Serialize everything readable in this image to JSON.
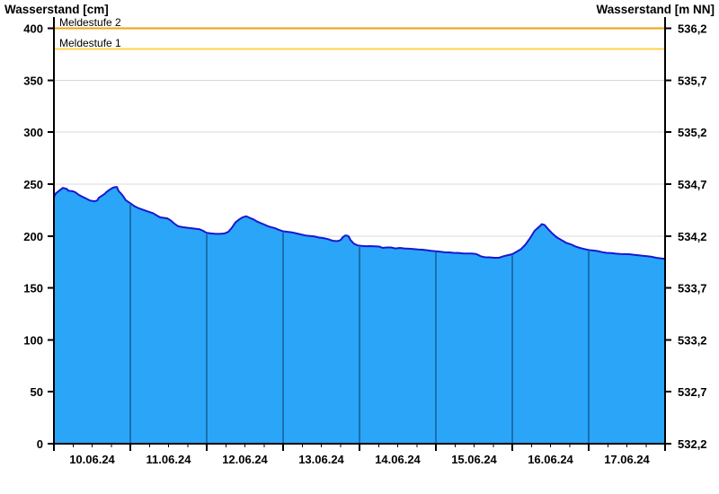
{
  "chart": {
    "title_left": "Wasserstand [cm]",
    "title_right": "Wasserstand [m NN]",
    "colors": {
      "fill": "#2aa5f8",
      "line": "#1818d2",
      "day_separator": "#1b6fb0",
      "grid": "#d8d8d8",
      "axis": "#000000",
      "meldestufe2": "#f2a20d",
      "meldestufe1": "#ffd34f"
    }
  },
  "chart_data": {
    "type": "area",
    "title": "Wasserstand",
    "grid": true,
    "x_unit": "hours since 10.06.24 00:00",
    "x_range": [
      0,
      192
    ],
    "x_day_labels": [
      "10.06.24",
      "11.06.24",
      "12.06.24",
      "13.06.24",
      "14.06.24",
      "15.06.24",
      "16.06.24",
      "17.06.24"
    ],
    "x_day_boundaries_hours": [
      24,
      48,
      72,
      96,
      120,
      144,
      168
    ],
    "x_minor_tick_hours": 6,
    "y_left": {
      "label": "Wasserstand [cm]",
      "range": [
        0,
        400
      ],
      "tick_step": 50,
      "ticks": [
        "0",
        "50",
        "100",
        "150",
        "200",
        "250",
        "300",
        "350",
        "400"
      ]
    },
    "y_right": {
      "label": "Wasserstand [m NN]",
      "range": [
        532.2,
        536.2
      ],
      "ticks": [
        "532,2",
        "532,7",
        "533,2",
        "533,7",
        "534,2",
        "534,7",
        "535,2",
        "535,7",
        "536,2"
      ]
    },
    "alert_lines": [
      {
        "name": "Meldestufe 2",
        "value_cm": 400,
        "color": "#f2a20d"
      },
      {
        "name": "Meldestufe 1",
        "value_cm": 380,
        "color": "#ffd34f"
      }
    ],
    "series": [
      {
        "name": "Wasserstand",
        "unit": "cm",
        "points": [
          [
            0,
            237.5
          ],
          [
            0.6,
            241
          ],
          [
            1.7,
            243.7
          ],
          [
            2.8,
            246.3
          ],
          [
            4,
            245.4
          ],
          [
            4.5,
            243.7
          ],
          [
            6,
            243
          ],
          [
            6.8,
            242
          ],
          [
            7.9,
            239.4
          ],
          [
            9,
            237.7
          ],
          [
            10.2,
            236
          ],
          [
            11.3,
            234.2
          ],
          [
            12.7,
            233.4
          ],
          [
            13.6,
            234.2
          ],
          [
            14.1,
            236.8
          ],
          [
            15,
            238.6
          ],
          [
            15.8,
            240.3
          ],
          [
            16.7,
            242.8
          ],
          [
            17.5,
            244.6
          ],
          [
            18.4,
            246.3
          ],
          [
            19.2,
            247.1
          ],
          [
            19.8,
            247.1
          ],
          [
            20.3,
            243.5
          ],
          [
            21.5,
            239.5
          ],
          [
            22.6,
            234.5
          ],
          [
            24,
            231.5
          ],
          [
            25.4,
            228.5
          ],
          [
            26.8,
            226.5
          ],
          [
            28.2,
            225
          ],
          [
            29.6,
            223.5
          ],
          [
            31.1,
            222
          ],
          [
            32.5,
            219.5
          ],
          [
            33.3,
            218
          ],
          [
            34.4,
            217.5
          ],
          [
            35.6,
            217
          ],
          [
            36.7,
            215
          ],
          [
            37.8,
            212
          ],
          [
            39,
            209.5
          ],
          [
            40.4,
            208.5
          ],
          [
            41.8,
            208
          ],
          [
            43.2,
            207.5
          ],
          [
            44.6,
            207
          ],
          [
            45.7,
            206.5
          ],
          [
            46.9,
            205
          ],
          [
            48,
            203
          ],
          [
            49.4,
            202.5
          ],
          [
            50.8,
            202
          ],
          [
            52.2,
            202
          ],
          [
            53.6,
            202.5
          ],
          [
            54.8,
            204
          ],
          [
            55.9,
            208
          ],
          [
            57,
            213
          ],
          [
            58.2,
            216
          ],
          [
            59.3,
            218
          ],
          [
            60.4,
            219
          ],
          [
            61.5,
            217.5
          ],
          [
            62.7,
            216
          ],
          [
            63.8,
            214
          ],
          [
            64.9,
            212.5
          ],
          [
            66.1,
            211
          ],
          [
            67.2,
            209.5
          ],
          [
            68.3,
            208.5
          ],
          [
            69.5,
            207.5
          ],
          [
            70.6,
            206
          ],
          [
            72,
            204.5
          ],
          [
            73.4,
            204
          ],
          [
            74.8,
            203.5
          ],
          [
            76.2,
            202.5
          ],
          [
            77.6,
            201.5
          ],
          [
            79.1,
            200.5
          ],
          [
            80.5,
            200
          ],
          [
            81.9,
            199.5
          ],
          [
            83.3,
            198.5
          ],
          [
            84.7,
            198
          ],
          [
            86.1,
            197
          ],
          [
            87.5,
            195.5
          ],
          [
            88.9,
            195
          ],
          [
            90,
            196
          ],
          [
            90.8,
            199
          ],
          [
            91.5,
            200.5
          ],
          [
            92,
            200.5
          ],
          [
            92.6,
            199.5
          ],
          [
            93.2,
            196
          ],
          [
            94.3,
            192.5
          ],
          [
            95.4,
            191
          ],
          [
            96.6,
            190.5
          ],
          [
            98,
            190.2
          ],
          [
            99.4,
            190.3
          ],
          [
            100.8,
            190
          ],
          [
            102.2,
            189.8
          ],
          [
            103.3,
            188.5
          ],
          [
            104.5,
            189
          ],
          [
            105.9,
            189
          ],
          [
            107.3,
            188
          ],
          [
            108.7,
            188.5
          ],
          [
            110.1,
            188
          ],
          [
            111.5,
            187.8
          ],
          [
            112.9,
            187.5
          ],
          [
            114.4,
            187
          ],
          [
            115.8,
            186.8
          ],
          [
            117.2,
            186.3
          ],
          [
            118.6,
            185.8
          ],
          [
            120,
            185.3
          ],
          [
            121.4,
            184.8
          ],
          [
            122.8,
            184.3
          ],
          [
            124.2,
            184.2
          ],
          [
            125.6,
            183.8
          ],
          [
            127.1,
            183.7
          ],
          [
            128.5,
            183.3
          ],
          [
            129.9,
            183.2
          ],
          [
            131.3,
            183.2
          ],
          [
            132.7,
            182.7
          ],
          [
            134.1,
            180.5
          ],
          [
            135.5,
            179.5
          ],
          [
            136.9,
            179.5
          ],
          [
            138.3,
            179
          ],
          [
            139.8,
            179
          ],
          [
            141.2,
            180.5
          ],
          [
            142.6,
            181.5
          ],
          [
            144,
            182.5
          ],
          [
            145.4,
            185
          ],
          [
            146.8,
            187.5
          ],
          [
            148.2,
            192
          ],
          [
            149.6,
            198
          ],
          [
            151,
            205
          ],
          [
            152.5,
            209
          ],
          [
            153.3,
            211.5
          ],
          [
            154.2,
            210.5
          ],
          [
            155.3,
            206.5
          ],
          [
            156.7,
            202
          ],
          [
            158.1,
            198.5
          ],
          [
            159.5,
            196
          ],
          [
            160.9,
            193.5
          ],
          [
            162.4,
            192
          ],
          [
            163.8,
            190
          ],
          [
            165.2,
            188.5
          ],
          [
            166.6,
            187.5
          ],
          [
            168,
            186.5
          ],
          [
            169.4,
            186
          ],
          [
            170.8,
            185.5
          ],
          [
            172.2,
            184.5
          ],
          [
            173.6,
            183.8
          ],
          [
            175.1,
            183.5
          ],
          [
            176.5,
            183
          ],
          [
            177.9,
            182.7
          ],
          [
            179.3,
            182.6
          ],
          [
            180.7,
            182.5
          ],
          [
            182.1,
            182
          ],
          [
            183.5,
            181.5
          ],
          [
            184.9,
            181
          ],
          [
            186.4,
            180.5
          ],
          [
            187.8,
            180
          ],
          [
            189.2,
            179
          ],
          [
            190.6,
            178.5
          ],
          [
            192,
            178
          ]
        ]
      }
    ]
  }
}
